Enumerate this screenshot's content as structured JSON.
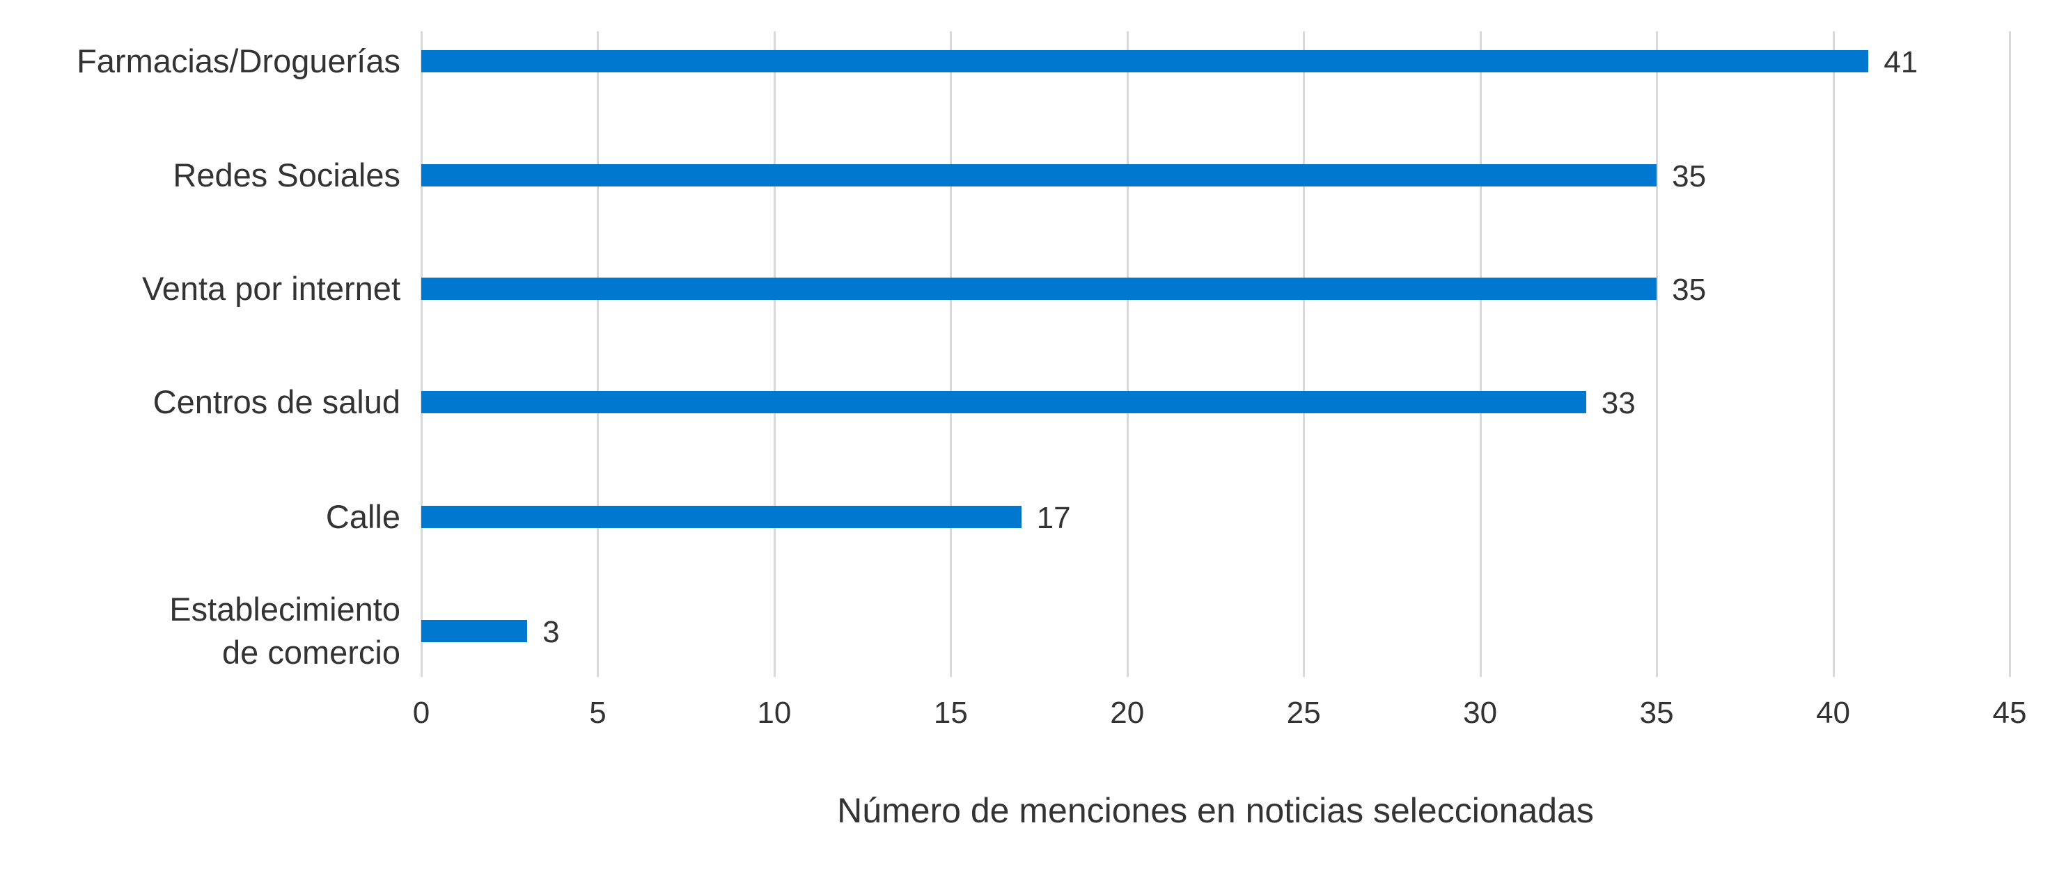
{
  "chart_data": {
    "type": "bar",
    "orientation": "horizontal",
    "title": "",
    "categories": [
      "Farmacias/Droguerías",
      "Redes Sociales",
      "Venta por internet",
      "Centros de salud",
      "Calle",
      "Establecimiento\nde comercio"
    ],
    "values": [
      41,
      35,
      35,
      33,
      17,
      3
    ],
    "xlabel": "Número de menciones en noticias seleccionadas",
    "ylabel": "",
    "xlim": [
      0,
      45
    ],
    "xticks": [
      0,
      5,
      10,
      15,
      20,
      25,
      30,
      35,
      40,
      45
    ],
    "grid": true,
    "data_labels": true,
    "legend": null,
    "bar_color": "#0078D0",
    "grid_color": "#D9D9D9",
    "text_color": "#333333"
  }
}
